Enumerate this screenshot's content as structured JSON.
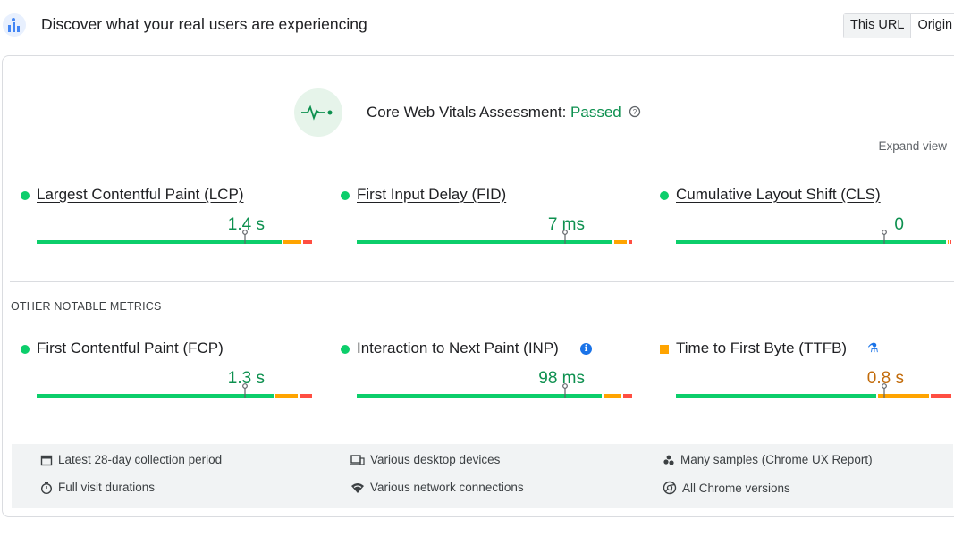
{
  "header": {
    "title": "Discover what your real users are experiencing",
    "tabs": [
      "This URL",
      "Origin"
    ]
  },
  "assessment": {
    "label": "Core Web Vitals Assessment:",
    "status": "Passed",
    "expand": "Expand view"
  },
  "core_metrics": [
    {
      "name": "Largest Contentful Paint (LCP)",
      "value": "1.4 s",
      "color": "#0d904f",
      "distribution": [
        89,
        7,
        4
      ]
    },
    {
      "name": "First Input Delay (FID)",
      "value": "7 ms",
      "color": "#0d904f",
      "distribution": [
        93,
        5,
        2
      ]
    },
    {
      "name": "Cumulative Layout Shift (CLS)",
      "value": "0",
      "color": "#0d904f",
      "distribution": [
        98,
        1,
        1
      ]
    }
  ],
  "other_heading": "OTHER NOTABLE METRICS",
  "other_metrics": [
    {
      "name": "First Contentful Paint (FCP)",
      "value": "1.3 s",
      "color": "#0d904f",
      "distribution": [
        86,
        9,
        5
      ]
    },
    {
      "name": "Interaction to Next Paint (INP)",
      "value": "98 ms",
      "color": "#0d904f",
      "distribution": [
        89,
        7,
        4
      ]
    },
    {
      "name": "Time to First Byte (TTFB)",
      "value": "0.8 s",
      "color": "#c26b0a",
      "distribution": [
        73,
        19,
        8
      ]
    }
  ],
  "footer": {
    "period": "Latest 28-day collection period",
    "devices": "Various desktop devices",
    "samples_before": "Many samples (",
    "samples_link": "Chrome UX Report",
    "samples_after": ")",
    "durations": "Full visit durations",
    "network": "Various network connections",
    "versions": "All Chrome versions"
  }
}
